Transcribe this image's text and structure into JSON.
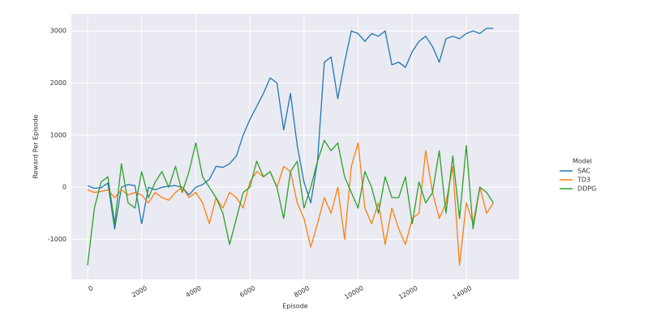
{
  "chart_data": {
    "type": "line",
    "x_label": "Episode",
    "y_label": "Reward Per Episode",
    "legend_title": "Model",
    "x": [
      0,
      250,
      500,
      750,
      1000,
      1250,
      1500,
      1750,
      2000,
      2250,
      2500,
      2750,
      3000,
      3250,
      3500,
      3750,
      4000,
      4250,
      4500,
      4750,
      5000,
      5250,
      5500,
      5750,
      6000,
      6250,
      6500,
      6750,
      7000,
      7250,
      7500,
      7750,
      8000,
      8250,
      8500,
      8750,
      9000,
      9250,
      9500,
      9750,
      10000,
      10250,
      10500,
      10750,
      11000,
      11250,
      11500,
      11750,
      12000,
      12250,
      12500,
      12750,
      13000,
      13250,
      13500,
      13750,
      14000,
      14250,
      14500,
      14750,
      15000
    ],
    "series": [
      {
        "name": "SAC",
        "color": "#1f77b4",
        "values": [
          30,
          -20,
          -10,
          80,
          -800,
          0,
          50,
          30,
          -700,
          0,
          -50,
          0,
          20,
          30,
          0,
          -150,
          0,
          50,
          150,
          400,
          380,
          450,
          600,
          1000,
          1300,
          1550,
          1800,
          2100,
          2000,
          1100,
          1800,
          800,
          100,
          -300,
          500,
          2400,
          2500,
          1700,
          2400,
          3000,
          2950,
          2800,
          2950,
          2900,
          3000,
          2350,
          2400,
          2300,
          2600,
          2800,
          2900,
          2700,
          2400,
          2850,
          2900,
          2850,
          2950,
          3000,
          2950,
          3050,
          3050
        ]
      },
      {
        "name": "TD3",
        "color": "#ff7f0e",
        "values": [
          -50,
          -100,
          -80,
          -50,
          -200,
          -50,
          -150,
          -100,
          -150,
          -300,
          -100,
          -200,
          -250,
          -100,
          0,
          -200,
          -100,
          -300,
          -700,
          -200,
          -400,
          -100,
          -200,
          -400,
          100,
          300,
          200,
          300,
          0,
          400,
          300,
          -300,
          -600,
          -1150,
          -700,
          -200,
          -500,
          0,
          -1000,
          400,
          850,
          -400,
          -700,
          -300,
          -1100,
          -400,
          -800,
          -1100,
          -600,
          -500,
          700,
          -100,
          -600,
          -300,
          400,
          -1500,
          -300,
          -700,
          0,
          -500,
          -300
        ]
      },
      {
        "name": "DDPG",
        "color": "#2ca02c",
        "values": [
          -1500,
          -400,
          100,
          200,
          -700,
          450,
          -300,
          -400,
          300,
          -200,
          100,
          300,
          0,
          400,
          -100,
          300,
          850,
          200,
          0,
          -200,
          -500,
          -1100,
          -600,
          -100,
          0,
          500,
          200,
          300,
          0,
          -600,
          300,
          500,
          -400,
          0,
          500,
          900,
          700,
          850,
          200,
          -100,
          -400,
          300,
          0,
          -500,
          200,
          -200,
          -200,
          200,
          -700,
          100,
          -300,
          -100,
          700,
          -500,
          600,
          -600,
          800,
          -800,
          0,
          -100,
          -300
        ]
      }
    ],
    "xlim": [
      -600,
      15950
    ],
    "ylim": [
      -1770,
      3330
    ],
    "xticks": [
      0,
      2000,
      4000,
      6000,
      8000,
      10000,
      12000,
      14000
    ],
    "yticks": [
      -1000,
      0,
      1000,
      2000,
      3000
    ],
    "grid": true,
    "legend": "right"
  }
}
